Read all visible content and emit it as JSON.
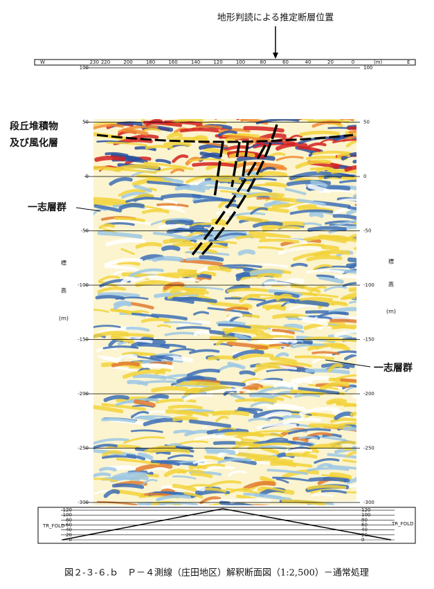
{
  "header": {
    "title": "地形判読による推定断層位置"
  },
  "distance_axis": {
    "west": "W",
    "east": "E",
    "unit": "(m)",
    "ticks": [
      230,
      220,
      200,
      180,
      160,
      140,
      120,
      100,
      80,
      60,
      40,
      20,
      0
    ]
  },
  "elevation_axis": {
    "ticks": [
      100,
      50,
      0,
      -50,
      -100,
      -150,
      -200,
      -250,
      -300
    ],
    "label_chars": [
      "標",
      "高"
    ],
    "unit": "(m)"
  },
  "annotations": {
    "terrace": [
      "段丘堆積物",
      "及び風化層"
    ],
    "formation_left": "一志層群",
    "formation_right": "一志層群"
  },
  "fold": {
    "label": "TR_FOLD",
    "ticks": [
      120,
      100,
      80,
      60,
      40,
      20,
      0
    ]
  },
  "caption": "図２-３-６.ｂ　Ｐ－４測線（庄田地区）解釈断面図（1:2,500）－通常処理"
}
